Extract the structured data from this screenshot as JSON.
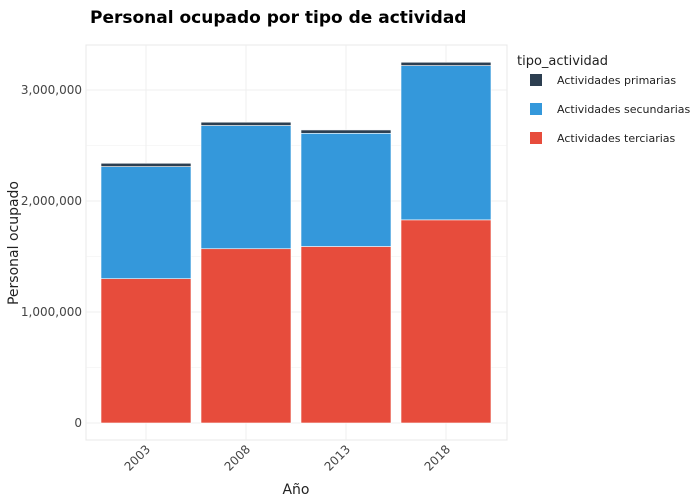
{
  "chart_data": {
    "type": "bar",
    "stacked": true,
    "title": "Personal ocupado por tipo de actividad",
    "xlabel": "Año",
    "ylabel": "Personal ocupado",
    "categories": [
      "2003",
      "2008",
      "2013",
      "2018"
    ],
    "ylim": [
      0,
      3400000
    ],
    "yticks": [
      0,
      1000000,
      2000000,
      3000000
    ],
    "ytick_labels": [
      "0",
      "1,000,000",
      "2,000,000",
      "3,000,000"
    ],
    "grid": true,
    "legend_title": "tipo_actividad",
    "legend_position": "right",
    "series": [
      {
        "name": "Actividades terciarias",
        "color": "#e74c3c",
        "values": [
          1300000,
          1570000,
          1590000,
          1830000
        ]
      },
      {
        "name": "Actividades secundarias",
        "color": "#3498db",
        "values": [
          1010000,
          1110000,
          1020000,
          1390000
        ]
      },
      {
        "name": "Actividades primarias",
        "color": "#2c3e50",
        "values": [
          30000,
          30000,
          30000,
          30000
        ]
      }
    ],
    "legend_order": [
      "Actividades primarias",
      "Actividades secundarias",
      "Actividades terciarias"
    ]
  }
}
